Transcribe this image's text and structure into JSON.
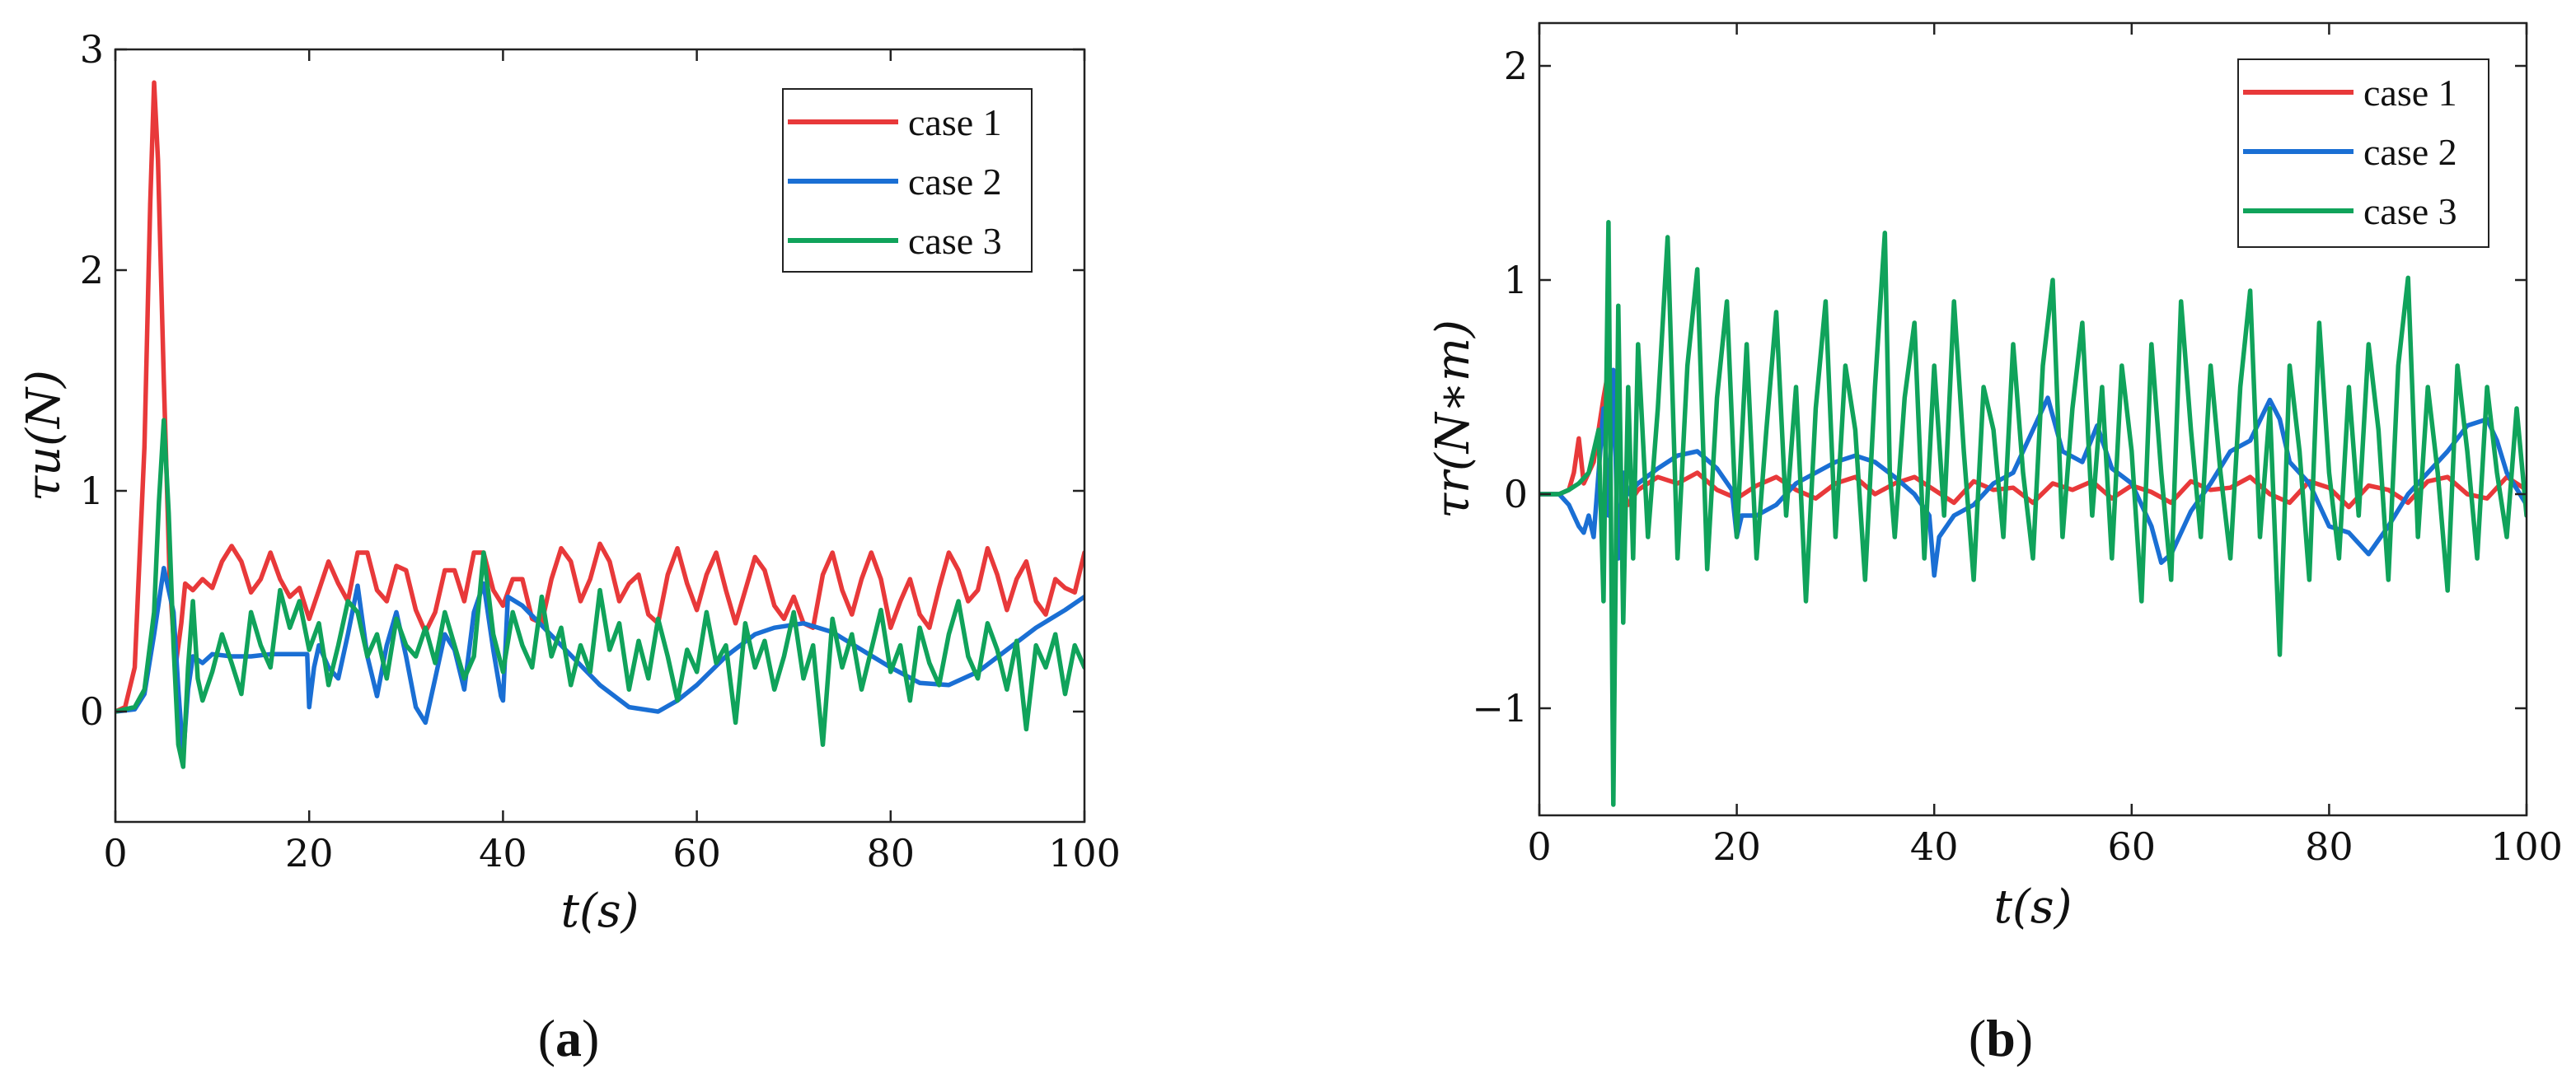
{
  "chart_data": [
    {
      "type": "line",
      "panel_label": "(a)",
      "panel_letter": "a",
      "xlabel": "t(s)",
      "ylabel": "τu(N)",
      "xlim": [
        0,
        100
      ],
      "ylim": [
        -0.5,
        3
      ],
      "xticks": [
        0,
        20,
        40,
        60,
        80,
        100
      ],
      "yticks": [
        0,
        1,
        2,
        3
      ],
      "legend_position": "top-right",
      "series": [
        {
          "name": "case 1",
          "color": "#e8393a",
          "x": [
            0,
            1,
            2,
            3,
            3.6,
            4,
            4.4,
            5,
            5.6,
            6.2,
            6.8,
            7.2,
            8,
            9,
            10,
            11,
            12,
            13,
            14,
            15,
            16,
            17,
            18,
            19,
            20,
            21,
            22,
            23,
            24,
            25,
            26,
            27,
            28,
            29,
            30,
            31,
            32,
            33,
            34,
            35,
            36,
            37,
            38,
            39,
            40,
            41,
            42,
            43,
            44,
            45,
            46,
            47,
            48,
            49,
            50,
            51,
            52,
            53,
            54,
            55,
            56,
            57,
            58,
            59,
            60,
            61,
            62,
            63,
            64,
            65,
            66,
            67,
            68,
            69,
            70,
            71,
            72,
            73,
            74,
            75,
            76,
            77,
            78,
            79,
            80,
            81,
            82,
            83,
            84,
            85,
            86,
            87,
            88,
            89,
            90,
            91,
            92,
            93,
            94,
            95,
            96,
            97,
            98,
            99,
            100
          ],
          "y": [
            0,
            0.02,
            0.2,
            1.2,
            2.3,
            2.85,
            2.5,
            1.5,
            0.6,
            0.2,
            0.4,
            0.58,
            0.55,
            0.6,
            0.56,
            0.68,
            0.75,
            0.68,
            0.54,
            0.6,
            0.72,
            0.6,
            0.52,
            0.56,
            0.42,
            0.55,
            0.68,
            0.58,
            0.5,
            0.72,
            0.72,
            0.55,
            0.5,
            0.66,
            0.64,
            0.46,
            0.36,
            0.45,
            0.64,
            0.64,
            0.5,
            0.72,
            0.72,
            0.55,
            0.48,
            0.6,
            0.6,
            0.42,
            0.4,
            0.6,
            0.74,
            0.68,
            0.5,
            0.6,
            0.76,
            0.68,
            0.5,
            0.58,
            0.62,
            0.44,
            0.4,
            0.62,
            0.74,
            0.58,
            0.46,
            0.62,
            0.72,
            0.55,
            0.4,
            0.55,
            0.7,
            0.64,
            0.48,
            0.42,
            0.52,
            0.4,
            0.38,
            0.62,
            0.72,
            0.55,
            0.44,
            0.6,
            0.72,
            0.6,
            0.38,
            0.5,
            0.6,
            0.44,
            0.38,
            0.56,
            0.72,
            0.64,
            0.5,
            0.55,
            0.74,
            0.62,
            0.46,
            0.6,
            0.68,
            0.5,
            0.44,
            0.6,
            0.56,
            0.54,
            0.72
          ]
        },
        {
          "name": "case 2",
          "color": "#1a6fd4",
          "x": [
            0,
            2,
            3,
            4,
            5,
            6,
            6.5,
            7,
            7.5,
            8,
            9,
            10,
            12,
            14,
            16,
            18,
            19.8,
            20,
            20.5,
            21,
            22,
            23,
            24,
            25,
            26,
            27,
            28,
            29,
            30,
            31,
            32,
            33,
            34,
            35,
            36,
            37,
            38,
            39,
            39.8,
            40,
            40.5,
            42,
            46,
            50,
            53,
            56,
            58,
            60,
            63,
            66,
            68,
            71,
            74,
            77,
            80,
            83,
            86,
            89,
            92,
            95,
            98,
            100
          ],
          "y": [
            0,
            0.01,
            0.08,
            0.35,
            0.65,
            0.45,
            0.1,
            -0.2,
            0.1,
            0.25,
            0.22,
            0.26,
            0.25,
            0.25,
            0.26,
            0.26,
            0.26,
            0.02,
            0.2,
            0.3,
            0.2,
            0.15,
            0.35,
            0.57,
            0.25,
            0.07,
            0.3,
            0.45,
            0.25,
            0.02,
            -0.05,
            0.15,
            0.35,
            0.28,
            0.1,
            0.45,
            0.58,
            0.28,
            0.07,
            0.05,
            0.52,
            0.48,
            0.3,
            0.12,
            0.02,
            0,
            0.05,
            0.12,
            0.25,
            0.35,
            0.38,
            0.4,
            0.36,
            0.28,
            0.2,
            0.13,
            0.12,
            0.18,
            0.28,
            0.38,
            0.46,
            0.52
          ]
        },
        {
          "name": "case 3",
          "color": "#10a35b",
          "x": [
            0,
            2,
            3,
            4,
            4.5,
            5,
            5.5,
            6,
            6.5,
            7,
            7.5,
            8,
            8.5,
            9,
            10,
            11,
            12,
            13,
            14,
            15,
            16,
            17,
            18,
            19,
            20,
            21,
            22,
            23,
            24,
            25,
            26,
            27,
            28,
            29,
            30,
            31,
            32,
            33,
            34,
            35,
            36,
            37,
            38,
            39,
            40,
            41,
            42,
            43,
            44,
            45,
            46,
            47,
            48,
            49,
            50,
            51,
            52,
            53,
            54,
            55,
            56,
            57,
            58,
            59,
            60,
            61,
            62,
            63,
            64,
            65,
            66,
            67,
            68,
            69,
            70,
            71,
            72,
            73,
            74,
            75,
            76,
            77,
            78,
            79,
            80,
            81,
            82,
            83,
            84,
            85,
            86,
            87,
            88,
            89,
            90,
            91,
            92,
            93,
            94,
            95,
            96,
            97,
            98,
            99,
            100
          ],
          "y": [
            0,
            0.02,
            0.1,
            0.45,
            0.95,
            1.32,
            0.9,
            0.3,
            -0.15,
            -0.25,
            0.2,
            0.5,
            0.15,
            0.05,
            0.18,
            0.35,
            0.22,
            0.08,
            0.45,
            0.3,
            0.2,
            0.55,
            0.38,
            0.5,
            0.28,
            0.4,
            0.12,
            0.3,
            0.5,
            0.45,
            0.25,
            0.35,
            0.15,
            0.42,
            0.3,
            0.25,
            0.38,
            0.22,
            0.45,
            0.3,
            0.15,
            0.25,
            0.72,
            0.35,
            0.18,
            0.45,
            0.3,
            0.2,
            0.52,
            0.25,
            0.38,
            0.12,
            0.3,
            0.18,
            0.55,
            0.28,
            0.4,
            0.1,
            0.32,
            0.15,
            0.42,
            0.25,
            0.05,
            0.28,
            0.18,
            0.45,
            0.22,
            0.3,
            -0.05,
            0.4,
            0.2,
            0.32,
            0.1,
            0.25,
            0.45,
            0.15,
            0.3,
            -0.15,
            0.42,
            0.2,
            0.35,
            0.1,
            0.28,
            0.46,
            0.18,
            0.3,
            0.05,
            0.38,
            0.22,
            0.12,
            0.35,
            0.5,
            0.25,
            0.15,
            0.4,
            0.28,
            0.1,
            0.32,
            -0.08,
            0.3,
            0.2,
            0.35,
            0.08,
            0.3,
            0.2
          ]
        }
      ]
    },
    {
      "type": "line",
      "panel_label": "(b)",
      "panel_letter": "b",
      "xlabel": "t(s)",
      "ylabel": "τr(N∗m)",
      "xlim": [
        0,
        100
      ],
      "ylim": [
        -1.5,
        2.2
      ],
      "xticks": [
        0,
        20,
        40,
        60,
        80,
        100
      ],
      "yticks": [
        -1,
        0,
        1,
        2
      ],
      "ytick_labels": [
        "−1",
        "0",
        "1",
        "2"
      ],
      "legend_position": "top-right",
      "series": [
        {
          "name": "case 1",
          "color": "#e8393a",
          "x": [
            0,
            2,
            3,
            3.5,
            4,
            4.5,
            5,
            5.5,
            6,
            6.5,
            7,
            7.5,
            8,
            9,
            10,
            12,
            14,
            16,
            18,
            20,
            22,
            24,
            26,
            28,
            30,
            32,
            34,
            36,
            38,
            40,
            42,
            44,
            46,
            48,
            50,
            52,
            54,
            56,
            58,
            60,
            62,
            64,
            66,
            68,
            70,
            72,
            74,
            76,
            78,
            80,
            82,
            84,
            86,
            88,
            90,
            92,
            94,
            96,
            98,
            100
          ],
          "y": [
            0,
            0,
            0.02,
            0.1,
            0.26,
            0.05,
            0.1,
            0.15,
            0.3,
            0.45,
            0.58,
            0.3,
            0.1,
            -0.05,
            0.02,
            0.08,
            0.05,
            0.1,
            0.02,
            -0.02,
            0.04,
            0.08,
            0.02,
            -0.02,
            0.05,
            0.08,
            0,
            0.05,
            0.08,
            0.02,
            -0.04,
            0.06,
            0.02,
            0.03,
            -0.04,
            0.05,
            0.02,
            0.06,
            -0.02,
            0.04,
            0.01,
            -0.04,
            0.06,
            0.02,
            0.03,
            0.08,
            0,
            -0.04,
            0.06,
            0.03,
            -0.06,
            0.04,
            0.02,
            -0.04,
            0.06,
            0.08,
            0,
            -0.02,
            0.08,
            0.02
          ]
        },
        {
          "name": "case 2",
          "color": "#1a6fd4",
          "x": [
            0,
            2,
            3,
            4,
            4.5,
            5,
            5.5,
            6,
            6.5,
            7,
            7.5,
            8,
            8.5,
            9,
            10,
            12,
            14,
            16,
            18,
            19.5,
            20,
            20.5,
            22,
            24,
            26,
            28,
            30,
            32,
            34,
            36,
            38,
            39.5,
            40,
            40.5,
            42,
            44,
            46,
            48,
            50,
            51.5,
            53,
            55,
            56.5,
            58,
            60,
            62,
            63,
            64,
            66,
            68,
            70,
            72,
            74,
            75,
            76,
            78,
            80,
            82,
            84,
            86,
            88,
            90,
            92,
            94,
            96,
            97,
            98,
            100
          ],
          "y": [
            0,
            0,
            -0.05,
            -0.15,
            -0.18,
            -0.1,
            -0.2,
            0.1,
            0.4,
            -0.1,
            0.58,
            -0.3,
            0.1,
            0,
            0.05,
            0.12,
            0.18,
            0.2,
            0.12,
            0.02,
            -0.2,
            -0.1,
            -0.1,
            -0.05,
            0.05,
            0.1,
            0.15,
            0.18,
            0.15,
            0.08,
            0,
            -0.1,
            -0.38,
            -0.2,
            -0.1,
            -0.05,
            0.05,
            0.1,
            0.3,
            0.45,
            0.2,
            0.15,
            0.32,
            0.12,
            0.05,
            -0.15,
            -0.32,
            -0.28,
            -0.08,
            0.05,
            0.2,
            0.25,
            0.44,
            0.35,
            0.15,
            0.05,
            -0.15,
            -0.18,
            -0.28,
            -0.15,
            0,
            0.1,
            0.2,
            0.32,
            0.35,
            0.25,
            0.1,
            -0.05
          ]
        },
        {
          "name": "case 3",
          "color": "#10a35b",
          "x": [
            0,
            2,
            3,
            4,
            5,
            6,
            6.5,
            7,
            7.5,
            8,
            8.5,
            9,
            9.5,
            10,
            11,
            12,
            13,
            14,
            15,
            16,
            17,
            18,
            19,
            20,
            21,
            22,
            23,
            24,
            25,
            26,
            27,
            28,
            29,
            30,
            31,
            32,
            33,
            34,
            35,
            35.5,
            36,
            37,
            38,
            39,
            40,
            41,
            42,
            43,
            44,
            45,
            46,
            47,
            48,
            49,
            50,
            51,
            52,
            53,
            54,
            55,
            56,
            57,
            58,
            59,
            60,
            61,
            62,
            63,
            64,
            65,
            66,
            67,
            68,
            69,
            70,
            71,
            72,
            73,
            74,
            75,
            76,
            77,
            78,
            79,
            80,
            81,
            82,
            83,
            84,
            85,
            86,
            87,
            88,
            89,
            90,
            91,
            92,
            93,
            94,
            95,
            96,
            97,
            98,
            99,
            100
          ],
          "y": [
            0,
            0,
            0.02,
            0.05,
            0.1,
            0.3,
            -0.5,
            1.27,
            -1.45,
            0.88,
            -0.6,
            0.5,
            -0.3,
            0.7,
            -0.2,
            0.4,
            1.2,
            -0.3,
            0.6,
            1.05,
            -0.35,
            0.45,
            0.9,
            -0.2,
            0.7,
            -0.3,
            0.3,
            0.85,
            -0.1,
            0.5,
            -0.5,
            0.4,
            0.9,
            -0.2,
            0.6,
            0.3,
            -0.4,
            0.5,
            1.22,
            0.1,
            -0.2,
            0.45,
            0.8,
            -0.3,
            0.6,
            -0.1,
            0.9,
            0.2,
            -0.4,
            0.5,
            0.3,
            -0.2,
            0.7,
            0.1,
            -0.3,
            0.6,
            1.0,
            -0.2,
            0.4,
            0.8,
            -0.1,
            0.5,
            -0.3,
            0.6,
            0.2,
            -0.5,
            0.7,
            0.1,
            -0.4,
            0.9,
            0.3,
            -0.2,
            0.6,
            0.1,
            -0.3,
            0.5,
            0.95,
            -0.2,
            0.4,
            -0.75,
            0.6,
            0.2,
            -0.4,
            0.8,
            0.1,
            -0.3,
            0.5,
            -0.1,
            0.7,
            0.3,
            -0.4,
            0.6,
            1.01,
            -0.2,
            0.5,
            0.1,
            -0.45,
            0.6,
            0.2,
            -0.3,
            0.5,
            0.1,
            -0.2,
            0.4,
            -0.1
          ]
        }
      ]
    }
  ]
}
